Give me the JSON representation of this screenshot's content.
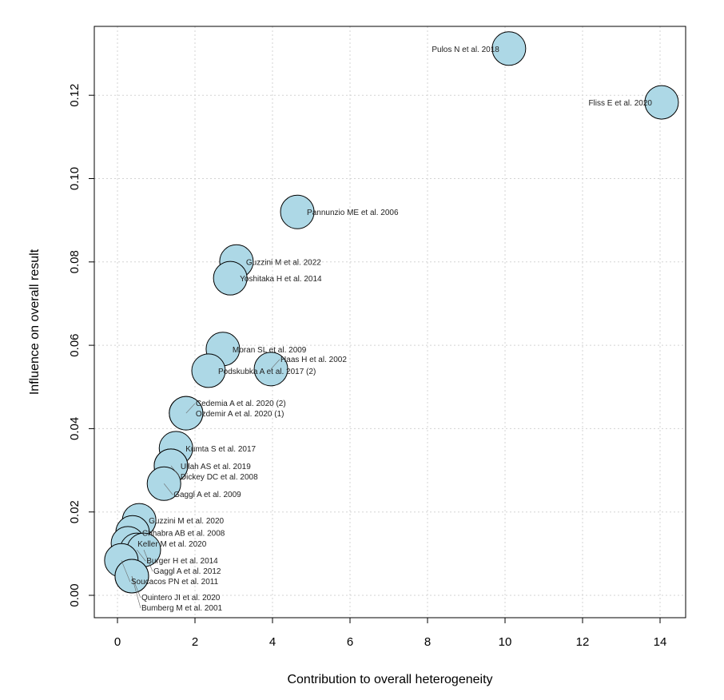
{
  "chart_data": {
    "type": "scatter",
    "title": "",
    "xlabel": "Contribution to overall heterogeneity",
    "ylabel": "Influence on overall result",
    "xlim": [
      -0.6,
      14.6
    ],
    "ylim": [
      -0.005,
      0.137
    ],
    "xticks": [
      "0",
      "2",
      "4",
      "6",
      "8",
      "10",
      "12",
      "14"
    ],
    "yticks": [
      "0.00",
      "0.02",
      "0.04",
      "0.06",
      "0.08",
      "0.10",
      "0.12"
    ],
    "grid": true,
    "point_color": "#add8e6",
    "points": [
      {
        "label": "Pulos N et al. 2018",
        "x": 10.1,
        "y": 0.1312,
        "side": "left"
      },
      {
        "label": "Fliss E et al. 2020",
        "x": 14.04,
        "y": 0.1183,
        "side": "left"
      },
      {
        "label": "Pannunzio ME et al. 2006",
        "x": 4.64,
        "y": 0.092
      },
      {
        "label": "Guzzini M et al. 2022",
        "x": 3.07,
        "y": 0.0801
      },
      {
        "label": "Yoshitaka H et al. 2014",
        "x": 2.91,
        "y": 0.0761
      },
      {
        "label": "Moran SL et al. 2009",
        "x": 2.72,
        "y": 0.0591
      },
      {
        "label": "Podskubka A et al. 2017 (2)",
        "x": 2.35,
        "y": 0.0539
      },
      {
        "label": "Haas H et al. 2002",
        "x": 3.96,
        "y": 0.0543
      },
      {
        "label": "Ozdemir A et al. 2020 (1)",
        "x": 1.77,
        "y": 0.0437
      },
      {
        "label": "Cedemia A et al. 2020 (2)",
        "x": 1.77,
        "y": 0.0437
      },
      {
        "label": "Kumta S et al. 2017",
        "x": 1.51,
        "y": 0.0353
      },
      {
        "label": "Ullah AS et al. 2019",
        "x": 1.38,
        "y": 0.0311
      },
      {
        "label": "Dickey DC et al. 2008",
        "x": 1.38,
        "y": 0.0311
      },
      {
        "label": "Gaggl A et al. 2009",
        "x": 1.2,
        "y": 0.0268
      },
      {
        "label": "Guzzini M et al. 2020",
        "x": 0.56,
        "y": 0.018
      },
      {
        "label": "Chhabra AB et al. 2008",
        "x": 0.39,
        "y": 0.0151
      },
      {
        "label": "Keller M et al. 2020",
        "x": 0.27,
        "y": 0.0125
      },
      {
        "label": "Burger H et al. 2014",
        "x": 0.5,
        "y": 0.0109
      },
      {
        "label": "Gaggl A et al. 2012",
        "x": 0.68,
        "y": 0.0109
      },
      {
        "label": "Soucacos PN et al. 2011",
        "x": 0.1,
        "y": 0.0084
      },
      {
        "label": "Quintero JI et al. 2020",
        "x": 0.37,
        "y": 0.0046
      },
      {
        "label": "Bumberg M et al. 2001",
        "x": 0.37,
        "y": 0.0046
      }
    ]
  }
}
